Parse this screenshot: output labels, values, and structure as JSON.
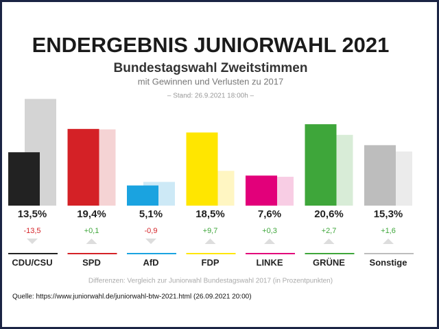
{
  "chart_data": {
    "type": "bar",
    "title": "ENDERGEBNIS JUNIORWAHL 2021",
    "subtitle": "Bundestagswahl Zweitstimmen",
    "subtitle2": "mit Gewinnen und Verlusten zu 2017",
    "stand": "– Stand: 26.9.2021 18:00h –",
    "categories": [
      "CDU/CSU",
      "SPD",
      "AfD",
      "FDP",
      "LINKE",
      "GRÜNE",
      "Sonstige"
    ],
    "series": [
      {
        "name": "2021",
        "colors": [
          "#222222",
          "#d42126",
          "#1aa3e0",
          "#ffe600",
          "#e2007a",
          "#3ea63a",
          "#bdbdbd"
        ],
        "values": [
          13.5,
          19.4,
          5.1,
          18.5,
          7.6,
          20.6,
          15.3
        ],
        "value_labels": [
          "13,5%",
          "19,4%",
          "5,1%",
          "18,5%",
          "7,6%",
          "20,6%",
          "15,3%"
        ]
      },
      {
        "name": "2017",
        "colors": [
          "#d4d4d4",
          "#f5d3d4",
          "#cde9f6",
          "#fff6c2",
          "#f8cde4",
          "#d8ecd7",
          "#ebebeb"
        ],
        "values": [
          27.0,
          19.3,
          6.0,
          8.8,
          7.3,
          17.9,
          13.7
        ]
      }
    ],
    "changes": {
      "values": [
        -13.5,
        0.1,
        -0.9,
        9.7,
        0.3,
        2.7,
        1.6
      ],
      "value_labels": [
        "-13,5",
        "+0,1",
        "-0,9",
        "+9,7",
        "+0,3",
        "+2,7",
        "+1,6"
      ]
    },
    "ylim": [
      0,
      30
    ],
    "footnote": "Differenzen: Vergleich zur Juniorwahl Bundestagswahl 2017 (in Prozentpunkten)"
  },
  "source": "Quelle: https://www.juniorwahl.de/juniorwahl-btw-2021.html (26.09.2021 20:00)"
}
